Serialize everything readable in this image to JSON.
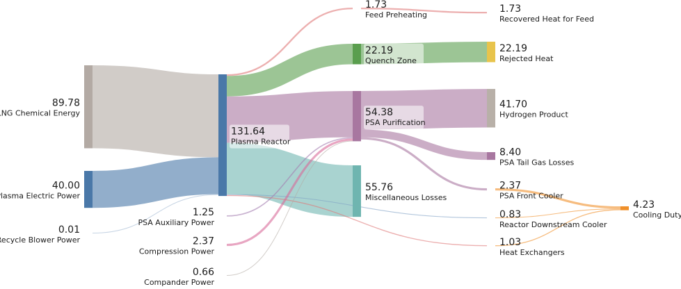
{
  "chart_data": {
    "type": "sankey",
    "nodes": [
      {
        "id": "lng",
        "label": "LNG Chemical Energy",
        "value": "89.78",
        "color": "#b3aaa4"
      },
      {
        "id": "ple",
        "label": "Plasma Electric Power",
        "value": "40.00",
        "color": "#4a78a8"
      },
      {
        "id": "rbp",
        "label": "Recycle Blower Power",
        "value": "0.01",
        "color": "#9fb6d0"
      },
      {
        "id": "pr",
        "label": "Plasma Reactor",
        "value": "131.64",
        "color": "#4a78a8"
      },
      {
        "id": "psaaux",
        "label": "PSA Auxiliary Power",
        "value": "1.25",
        "color": "#a57eb0"
      },
      {
        "id": "comp",
        "label": "Compression Power",
        "value": "2.37",
        "color": "#d86a9a"
      },
      {
        "id": "cpd",
        "label": "Compander Power",
        "value": "0.66",
        "color": "#b3aaa4"
      },
      {
        "id": "fp",
        "label": "Feed Preheating",
        "value": "1.73",
        "color": "#e07a7a"
      },
      {
        "id": "qz",
        "label": "Quench Zone",
        "value": "22.19",
        "color": "#5a9e4e"
      },
      {
        "id": "psa",
        "label": "PSA Purification",
        "value": "54.38",
        "color": "#a877a0"
      },
      {
        "id": "misc",
        "label": "Miscellaneous Losses",
        "value": "55.76",
        "color": "#6fb5b0"
      },
      {
        "id": "rhf",
        "label": "Recovered Heat for Feed",
        "value": "1.73",
        "color": "#7cc0c4"
      },
      {
        "id": "rh",
        "label": "Rejected Heat",
        "value": "22.19",
        "color": "#e8c44c"
      },
      {
        "id": "hp",
        "label": "Hydrogen Product",
        "value": "41.70",
        "color": "#b8b0a8"
      },
      {
        "id": "ptgl",
        "label": "PSA Tail Gas Losses",
        "value": "8.40",
        "color": "#a877a0"
      },
      {
        "id": "pfc",
        "label": "PSA Front Cooler",
        "value": "2.37",
        "color": "#a877a0"
      },
      {
        "id": "rdc",
        "label": "Reactor Downstream Cooler",
        "value": "0.83",
        "color": "#7ea0c4"
      },
      {
        "id": "hx",
        "label": "Heat Exchangers",
        "value": "1.03",
        "color": "#e07a7a"
      },
      {
        "id": "cd",
        "label": "Cooling Duty",
        "value": "4.23",
        "color": "#f0902a"
      }
    ],
    "links": [
      {
        "source": "lng",
        "target": "pr",
        "value": 89.78
      },
      {
        "source": "ple",
        "target": "pr",
        "value": 40.0
      },
      {
        "source": "rbp",
        "target": "pr",
        "value": 0.01
      },
      {
        "source": "pr",
        "target": "fp",
        "value": 1.73
      },
      {
        "source": "pr",
        "target": "qz",
        "value": 22.19
      },
      {
        "source": "pr",
        "target": "psa",
        "value": 50.1
      },
      {
        "source": "pr",
        "target": "misc",
        "value": 55.76
      },
      {
        "source": "pr",
        "target": "rdc",
        "value": 0.83
      },
      {
        "source": "pr",
        "target": "hx",
        "value": 1.03
      },
      {
        "source": "psaaux",
        "target": "psa",
        "value": 1.25
      },
      {
        "source": "comp",
        "target": "psa",
        "value": 2.37
      },
      {
        "source": "cpd",
        "target": "psa",
        "value": 0.66
      },
      {
        "source": "fp",
        "target": "rhf",
        "value": 1.73
      },
      {
        "source": "qz",
        "target": "rh",
        "value": 22.19
      },
      {
        "source": "psa",
        "target": "hp",
        "value": 41.7
      },
      {
        "source": "psa",
        "target": "ptgl",
        "value": 8.4
      },
      {
        "source": "psa",
        "target": "pfc",
        "value": 2.37
      },
      {
        "source": "pfc",
        "target": "cd",
        "value": 2.37
      },
      {
        "source": "rdc",
        "target": "cd",
        "value": 0.83
      },
      {
        "source": "hx",
        "target": "cd",
        "value": 1.03
      }
    ]
  }
}
